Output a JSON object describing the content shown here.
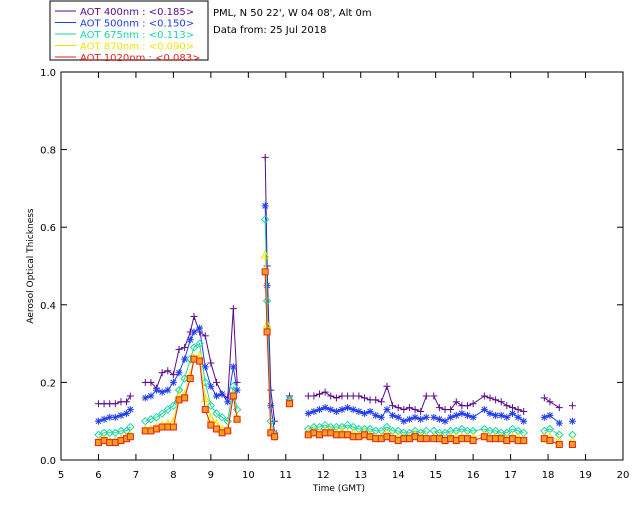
{
  "info": {
    "location": "PML, N 50 22', W 04 08', Alt 0m",
    "date_line": "Data from: 25 Jul 2018"
  },
  "colors": {
    "s400": "#5a0a8c",
    "s500": "#1f3cf0",
    "s675": "#19d9a0",
    "s870": "#f2e600",
    "s1020": "#e8201a",
    "s1020_fill": "#f0a020"
  },
  "chart_data": {
    "type": "line",
    "xlabel": "Time (GMT)",
    "ylabel": "Aerosol Optical Thickness",
    "xlim": [
      5,
      20
    ],
    "ylim": [
      0,
      1.0
    ],
    "xticks": [
      5,
      6,
      7,
      8,
      9,
      10,
      11,
      12,
      13,
      14,
      15,
      16,
      17,
      18,
      19,
      20
    ],
    "yticks": [
      0.0,
      0.2,
      0.4,
      0.6,
      0.8,
      1.0
    ],
    "legend_position": "top-left",
    "segments": [
      [
        6.0,
        6.85
      ],
      [
        7.25,
        9.7
      ],
      [
        10.45,
        10.7
      ],
      [
        11.1,
        11.1
      ],
      [
        11.6,
        14.75
      ],
      [
        14.95,
        17.35
      ],
      [
        17.9,
        18.3
      ],
      [
        18.65,
        18.65
      ]
    ],
    "x": [
      6.0,
      6.15,
      6.3,
      6.45,
      6.6,
      6.75,
      6.85,
      7.25,
      7.4,
      7.55,
      7.7,
      7.85,
      8.0,
      8.15,
      8.3,
      8.45,
      8.55,
      8.7,
      8.85,
      9.0,
      9.15,
      9.3,
      9.45,
      9.6,
      9.7,
      10.45,
      10.5,
      10.6,
      10.7,
      11.1,
      11.6,
      11.75,
      11.9,
      12.05,
      12.2,
      12.35,
      12.5,
      12.65,
      12.8,
      12.95,
      13.1,
      13.25,
      13.4,
      13.55,
      13.7,
      13.85,
      14.0,
      14.15,
      14.3,
      14.45,
      14.6,
      14.75,
      14.95,
      15.1,
      15.25,
      15.4,
      15.55,
      15.7,
      15.85,
      16.0,
      16.3,
      16.45,
      16.6,
      16.75,
      16.9,
      17.05,
      17.2,
      17.35,
      17.9,
      18.05,
      18.3,
      18.65
    ],
    "series": [
      {
        "name": "AOT  400nm : <0.185>",
        "color_key": "s400",
        "marker": "plus",
        "values": [
          0.145,
          0.145,
          0.145,
          0.145,
          0.15,
          0.15,
          0.165,
          0.2,
          0.2,
          0.185,
          0.225,
          0.23,
          0.22,
          0.285,
          0.29,
          0.33,
          0.37,
          0.33,
          0.32,
          0.25,
          0.2,
          0.17,
          0.16,
          0.39,
          0.2,
          0.78,
          0.5,
          0.18,
          0.1,
          0.165,
          0.165,
          0.165,
          0.17,
          0.175,
          0.165,
          0.16,
          0.165,
          0.165,
          0.165,
          0.165,
          0.16,
          0.155,
          0.155,
          0.15,
          0.19,
          0.14,
          0.135,
          0.13,
          0.135,
          0.13,
          0.125,
          0.165,
          0.165,
          0.135,
          0.13,
          0.13,
          0.15,
          0.14,
          0.14,
          0.145,
          0.165,
          0.16,
          0.155,
          0.15,
          0.14,
          0.135,
          0.13,
          0.125,
          0.16,
          0.15,
          0.135,
          0.14
        ]
      },
      {
        "name": "AOT  500nm : <0.150>",
        "color_key": "s500",
        "marker": "asterisk",
        "values": [
          0.1,
          0.105,
          0.11,
          0.11,
          0.115,
          0.12,
          0.13,
          0.16,
          0.165,
          0.18,
          0.175,
          0.18,
          0.2,
          0.225,
          0.26,
          0.31,
          0.33,
          0.34,
          0.24,
          0.19,
          0.165,
          0.17,
          0.15,
          0.24,
          0.18,
          0.655,
          0.45,
          0.14,
          0.07,
          0.155,
          0.12,
          0.125,
          0.13,
          0.135,
          0.13,
          0.125,
          0.13,
          0.135,
          0.13,
          0.125,
          0.12,
          0.125,
          0.115,
          0.11,
          0.13,
          0.115,
          0.11,
          0.1,
          0.105,
          0.11,
          0.105,
          0.11,
          0.11,
          0.105,
          0.1,
          0.11,
          0.115,
          0.12,
          0.115,
          0.11,
          0.13,
          0.12,
          0.115,
          0.115,
          0.11,
          0.12,
          0.11,
          0.1,
          0.11,
          0.115,
          0.095,
          0.1
        ]
      },
      {
        "name": "AOT  675nm : <0.113>",
        "color_key": "s675",
        "marker": "diamond",
        "values": [
          0.065,
          0.07,
          0.07,
          0.07,
          0.075,
          0.075,
          0.085,
          0.1,
          0.105,
          0.11,
          0.12,
          0.13,
          0.14,
          0.18,
          0.21,
          0.26,
          0.29,
          0.3,
          0.2,
          0.14,
          0.12,
          0.11,
          0.1,
          0.19,
          0.13,
          0.62,
          0.41,
          0.1,
          0.06,
          0.155,
          0.08,
          0.085,
          0.085,
          0.09,
          0.085,
          0.085,
          0.085,
          0.09,
          0.085,
          0.08,
          0.08,
          0.08,
          0.075,
          0.075,
          0.085,
          0.075,
          0.075,
          0.07,
          0.07,
          0.075,
          0.07,
          0.075,
          0.075,
          0.07,
          0.07,
          0.075,
          0.075,
          0.08,
          0.075,
          0.075,
          0.08,
          0.075,
          0.075,
          0.07,
          0.07,
          0.08,
          0.075,
          0.07,
          0.075,
          0.08,
          0.065,
          0.065
        ]
      },
      {
        "name": "AOT  870nm : <0.090>",
        "color_key": "s870",
        "marker": "triangle",
        "values": [
          0.05,
          0.055,
          0.05,
          0.05,
          0.055,
          0.06,
          0.065,
          0.08,
          0.08,
          0.085,
          0.09,
          0.095,
          0.1,
          0.165,
          0.17,
          0.22,
          0.265,
          0.27,
          0.16,
          0.11,
          0.095,
          0.08,
          0.08,
          0.17,
          0.11,
          0.53,
          0.35,
          0.08,
          0.065,
          0.15,
          0.07,
          0.075,
          0.07,
          0.075,
          0.075,
          0.07,
          0.075,
          0.07,
          0.07,
          0.065,
          0.07,
          0.065,
          0.06,
          0.06,
          0.07,
          0.06,
          0.06,
          0.06,
          0.06,
          0.065,
          0.06,
          0.06,
          0.06,
          0.06,
          0.055,
          0.06,
          0.06,
          0.06,
          0.06,
          0.06,
          0.065,
          0.06,
          0.06,
          0.06,
          0.055,
          0.06,
          0.06,
          0.055,
          0.06,
          0.06,
          0.05,
          0.05
        ]
      },
      {
        "name": "AOT 1020nm : <0.083>",
        "color_key": "s1020",
        "marker": "square",
        "values": [
          0.045,
          0.05,
          0.045,
          0.045,
          0.05,
          0.055,
          0.06,
          0.075,
          0.075,
          0.08,
          0.085,
          0.085,
          0.085,
          0.155,
          0.16,
          0.21,
          0.26,
          0.255,
          0.13,
          0.09,
          0.08,
          0.07,
          0.075,
          0.165,
          0.105,
          0.485,
          0.33,
          0.07,
          0.06,
          0.145,
          0.065,
          0.07,
          0.065,
          0.07,
          0.07,
          0.065,
          0.065,
          0.065,
          0.06,
          0.06,
          0.065,
          0.06,
          0.055,
          0.055,
          0.06,
          0.055,
          0.05,
          0.055,
          0.055,
          0.06,
          0.055,
          0.055,
          0.055,
          0.055,
          0.05,
          0.055,
          0.05,
          0.055,
          0.055,
          0.05,
          0.06,
          0.055,
          0.055,
          0.055,
          0.05,
          0.055,
          0.05,
          0.05,
          0.055,
          0.05,
          0.04,
          0.04
        ]
      }
    ]
  }
}
